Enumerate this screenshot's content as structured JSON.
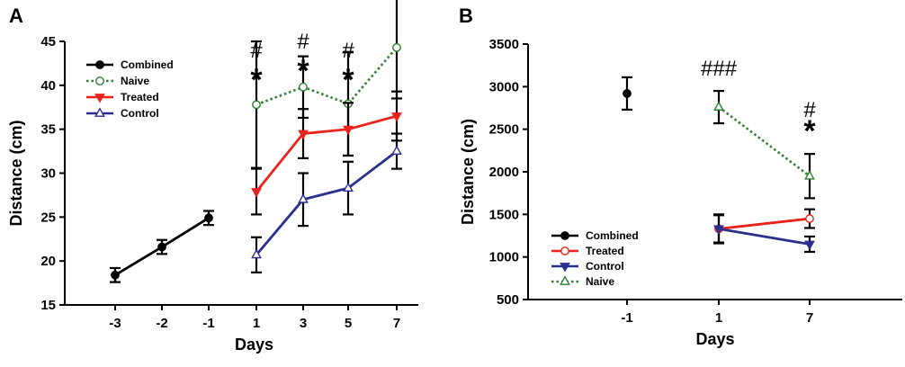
{
  "chart_data": [
    {
      "panel": "A",
      "type": "line",
      "xlabel": "Days",
      "ylabel": "Distance (cm)",
      "x_ticks": [
        "-3",
        "-2",
        "-1",
        "1",
        "3",
        "5",
        "7"
      ],
      "ylim": [
        15,
        45
      ],
      "y_ticks": [
        "15",
        "20",
        "25",
        "30",
        "35",
        "40",
        "45"
      ],
      "grid": false,
      "legend_position": "top-left",
      "legend": [
        "Combined",
        "Naive",
        "Treated",
        "Control"
      ],
      "series": [
        {
          "name": "Combined",
          "color": "#000000",
          "dash": "solid",
          "marker": "filled-circle",
          "x": [
            "-3",
            "-2",
            "-1"
          ],
          "y": [
            18.4,
            21.6,
            24.9
          ],
          "err": [
            0.8,
            0.8,
            0.8
          ]
        },
        {
          "name": "Naive",
          "color": "#2e7d32",
          "dash": "dotted",
          "marker": "open-circle",
          "x": [
            "1",
            "3",
            "5",
            "7"
          ],
          "y": [
            37.8,
            39.8,
            37.9,
            44.3
          ],
          "err": [
            7.2,
            3.5,
            5.9,
            5.8
          ]
        },
        {
          "name": "Treated",
          "color": "#e8231c",
          "dash": "solid",
          "marker": "filled-triangle-down",
          "x": [
            "1",
            "3",
            "5",
            "7"
          ],
          "y": [
            27.9,
            34.5,
            35.0,
            36.5
          ],
          "err": [
            2.6,
            2.8,
            3.0,
            2.8
          ]
        },
        {
          "name": "Control",
          "color": "#2b2f8f",
          "dash": "solid",
          "marker": "open-triangle-up",
          "x": [
            "1",
            "3",
            "5",
            "7"
          ],
          "y": [
            20.7,
            27.0,
            28.3,
            32.5
          ],
          "err": [
            2.0,
            3.0,
            3.0,
            2.0
          ]
        }
      ],
      "annotations": [
        {
          "x": "1",
          "lines": [
            "#",
            "*"
          ]
        },
        {
          "x": "3",
          "lines": [
            "#",
            "*"
          ]
        },
        {
          "x": "5",
          "lines": [
            "#",
            "*"
          ]
        }
      ]
    },
    {
      "panel": "B",
      "type": "line",
      "xlabel": "Days",
      "ylabel": "Distance (cm)",
      "x_ticks": [
        "-1",
        "1",
        "7"
      ],
      "ylim": [
        500,
        3500
      ],
      "y_ticks": [
        "500",
        "1000",
        "1500",
        "2000",
        "2500",
        "3000",
        "3500"
      ],
      "grid": false,
      "legend_position": "bottom-left",
      "legend": [
        "Combined",
        "Treated",
        "Control",
        "Naive"
      ],
      "series": [
        {
          "name": "Combined",
          "color": "#000000",
          "dash": "solid",
          "marker": "filled-circle",
          "x": [
            "-1"
          ],
          "y": [
            2920
          ],
          "err": [
            190
          ]
        },
        {
          "name": "Treated",
          "color": "#e8231c",
          "dash": "solid",
          "marker": "open-circle",
          "x": [
            "1",
            "7"
          ],
          "y": [
            1330,
            1450
          ],
          "err": [
            170,
            110
          ]
        },
        {
          "name": "Control",
          "color": "#2b2f8f",
          "dash": "solid",
          "marker": "filled-triangle-down",
          "x": [
            "1",
            "7"
          ],
          "y": [
            1330,
            1150
          ],
          "err": [
            160,
            90
          ]
        },
        {
          "name": "Naive",
          "color": "#2e7d32",
          "dash": "dotted",
          "marker": "open-triangle-up",
          "x": [
            "1",
            "7"
          ],
          "y": [
            2760,
            1950
          ],
          "err": [
            190,
            260
          ]
        }
      ],
      "annotations": [
        {
          "x": "1",
          "lines": [
            "###"
          ]
        },
        {
          "x": "7",
          "lines": [
            "#",
            "*"
          ]
        }
      ]
    }
  ]
}
